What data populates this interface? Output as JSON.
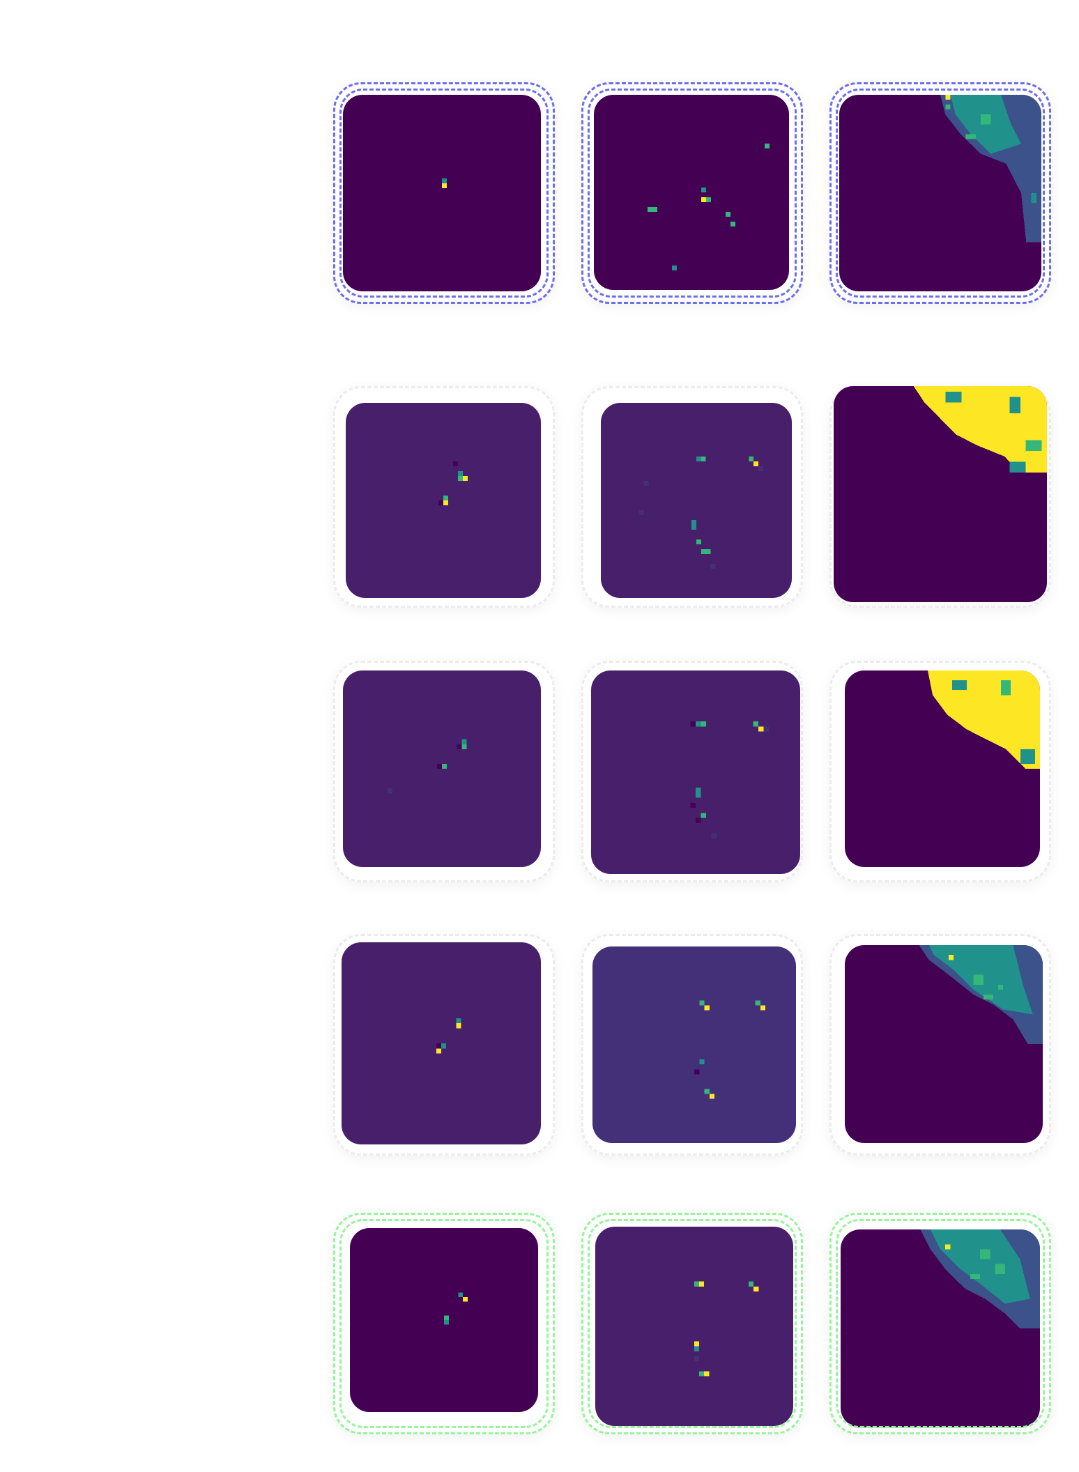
{
  "colors": {
    "frame_blue": "#6b6df2",
    "frame_green": "#95f59a",
    "frame_grey": "#ececee",
    "viridis_dark": "#440154",
    "viridis_purple": "#481f6b",
    "viridis_indigo": "#433079",
    "viridis_teal": "#21918c",
    "viridis_green": "#35b779",
    "viridis_yellow": "#fde725"
  },
  "grid": {
    "rows": [
      {
        "name": "row-1",
        "style": "blue",
        "tiles": [
          "single-spot",
          "scattered-spots",
          "corner-cluster"
        ]
      },
      {
        "name": "row-2",
        "style": "grey",
        "tiles": [
          "double-spot",
          "multi-spot",
          "corner-saturated"
        ]
      },
      {
        "name": "row-3",
        "style": "grey",
        "tiles": [
          "double-spot",
          "multi-spot",
          "corner-saturated"
        ]
      },
      {
        "name": "row-4",
        "style": "grey",
        "tiles": [
          "double-spot",
          "multi-spot",
          "corner-cluster"
        ]
      },
      {
        "name": "row-5",
        "style": "green",
        "tiles": [
          "double-spot",
          "multi-spot",
          "corner-cluster"
        ]
      }
    ]
  }
}
